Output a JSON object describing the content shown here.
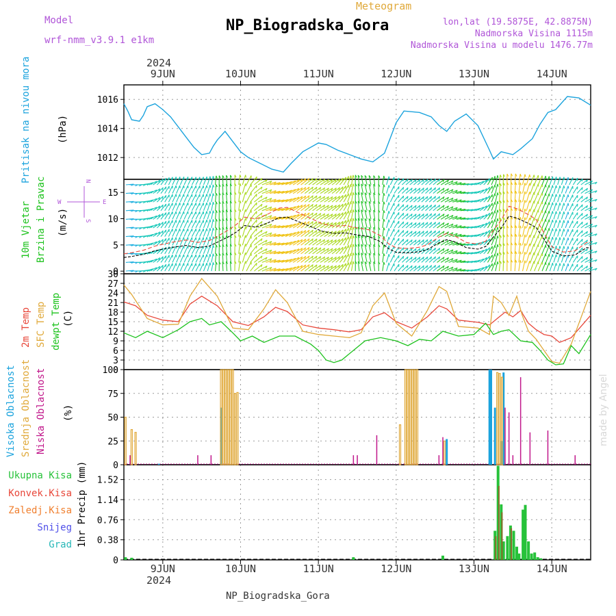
{
  "header": {
    "model_label": "Model",
    "model_name": "wrf-nmm_v3.9.1 e1km",
    "meteogram_label": "Meteogram",
    "station": "NP_Biogradska_Gora",
    "lonlat": "lon,lat (19.5875E, 42.8875N)",
    "elevation": "Nadmorska Visina 1115m",
    "model_elevation": "Nadmorska Visina u modelu 1476.77m",
    "footer": "NP_Biogradska_Gora",
    "watermark": "made by Angel"
  },
  "colors": {
    "pressure": "#1ba3dd",
    "t2m": "#e8473a",
    "tsfc": "#e0a93a",
    "dewpt": "#1cc21c",
    "high_cloud": "#1ba3dd",
    "mid_cloud": "#e0a93a",
    "low_cloud": "#c0168a",
    "total_precip": "#27c23a",
    "conv_precip": "#e8473a",
    "frozen_precip": "#f08030",
    "snow": "#4f4fe8",
    "hail": "#28b8b8",
    "purple": "#b055d8",
    "grid": "#9a9a9a"
  },
  "chart_data": [
    {
      "id": "pressure",
      "type": "line",
      "ylabel": [
        "Pritisak na nivou mora",
        "(hPa)"
      ],
      "yticks": [
        1012,
        1014,
        1016
      ],
      "ylim": [
        1010.5,
        1017
      ],
      "x": [
        8.5,
        8.55,
        8.6,
        8.7,
        8.75,
        8.8,
        8.9,
        9.0,
        9.1,
        9.2,
        9.3,
        9.4,
        9.5,
        9.6,
        9.65,
        9.7,
        9.8,
        9.9,
        10.0,
        10.1,
        10.25,
        10.4,
        10.55,
        10.65,
        10.8,
        11.0,
        11.1,
        11.25,
        11.4,
        11.55,
        11.7,
        11.85,
        12.0,
        12.1,
        12.3,
        12.45,
        12.55,
        12.65,
        12.75,
        12.9,
        13.05,
        13.2,
        13.25,
        13.35,
        13.5,
        13.6,
        13.75,
        13.85,
        13.95,
        14.05,
        14.2,
        14.35,
        14.5
      ],
      "values": [
        1015.7,
        1015.2,
        1014.6,
        1014.5,
        1014.9,
        1015.5,
        1015.7,
        1015.3,
        1014.8,
        1014.1,
        1013.4,
        1012.7,
        1012.2,
        1012.3,
        1012.8,
        1013.2,
        1013.8,
        1013.1,
        1012.4,
        1012.0,
        1011.6,
        1011.2,
        1011.0,
        1011.6,
        1012.4,
        1013.0,
        1012.9,
        1012.5,
        1012.2,
        1011.9,
        1011.7,
        1012.3,
        1014.4,
        1015.2,
        1015.1,
        1014.8,
        1014.2,
        1013.8,
        1014.5,
        1015.0,
        1014.2,
        1012.5,
        1011.9,
        1012.4,
        1012.2,
        1012.6,
        1013.3,
        1014.3,
        1015.1,
        1015.3,
        1016.2,
        1016.1,
        1015.6
      ]
    },
    {
      "id": "wind",
      "type": "line",
      "ylabel": [
        "10m Vjetar",
        "Brzina i Pravac",
        "(m/s)"
      ],
      "compass": [
        "W",
        "E",
        "N",
        "S"
      ],
      "yticks": [
        0,
        5,
        10,
        15
      ],
      "ylim": [
        -0.5,
        17.5
      ],
      "x": [
        8.5,
        8.6,
        8.75,
        8.9,
        9.0,
        9.15,
        9.3,
        9.45,
        9.6,
        9.7,
        9.85,
        9.95,
        10.05,
        10.2,
        10.35,
        10.5,
        10.6,
        10.75,
        10.9,
        11.05,
        11.2,
        11.35,
        11.5,
        11.65,
        11.8,
        11.9,
        12.0,
        12.15,
        12.3,
        12.4,
        12.55,
        12.65,
        12.75,
        12.9,
        13.05,
        13.15,
        13.25,
        13.35,
        13.45,
        13.55,
        13.7,
        13.8,
        13.9,
        14.0,
        14.15,
        14.3,
        14.45,
        14.5
      ],
      "values": [
        2.6,
        2.8,
        3.2,
        3.9,
        4.2,
        4.6,
        4.9,
        4.5,
        4.8,
        5.5,
        6.6,
        7.5,
        8.7,
        8.4,
        9.2,
        10.2,
        10.3,
        9.4,
        8.5,
        7.6,
        7.2,
        7.3,
        6.9,
        6.6,
        5.6,
        4.3,
        3.6,
        3.5,
        3.7,
        4.1,
        5.4,
        6.0,
        5.6,
        4.5,
        4.2,
        4.7,
        6.5,
        8.2,
        10.5,
        10.1,
        9.1,
        8.3,
        6.1,
        3.8,
        2.9,
        3.1,
        4.5,
        4.4
      ],
      "gust_factor": 1.15,
      "arrow_speed_bands": [
        [
          1.5,
          "#2a3be8"
        ],
        [
          3.0,
          "#1fb0e0"
        ],
        [
          5.0,
          "#16c8b8"
        ],
        [
          7.0,
          "#22c228"
        ],
        [
          9.0,
          "#a8d81a"
        ],
        [
          11.0,
          "#f0c418"
        ],
        [
          13.0,
          "#f07c1a"
        ],
        [
          99,
          "#e8283a"
        ]
      ]
    },
    {
      "id": "temperature",
      "type": "line",
      "ylabel": [
        "2m Temp",
        "SFC Temp",
        "dewpt Temp",
        "(C)"
      ],
      "yticks": [
        0,
        3,
        6,
        9,
        12,
        15,
        18,
        21,
        24,
        27,
        30
      ],
      "ylim": [
        0,
        30
      ],
      "series": [
        {
          "name": "2m Temp",
          "x": [
            8.5,
            8.65,
            8.8,
            9.0,
            9.2,
            9.35,
            9.5,
            9.7,
            9.9,
            10.1,
            10.3,
            10.45,
            10.6,
            10.8,
            11.0,
            11.2,
            11.4,
            11.55,
            11.7,
            11.85,
            12.0,
            12.2,
            12.4,
            12.55,
            12.65,
            12.8,
            13.05,
            13.2,
            13.3,
            13.4,
            13.5,
            13.6,
            13.7,
            13.8,
            13.9,
            14.0,
            14.1,
            14.25,
            14.5
          ],
          "values": [
            21.2,
            20.0,
            17.0,
            15.5,
            15.0,
            20.5,
            23.0,
            20.0,
            15.0,
            13.8,
            16.5,
            19.5,
            18.2,
            14.0,
            13.0,
            12.5,
            11.8,
            12.5,
            16.5,
            17.8,
            15.0,
            13.0,
            16.5,
            20.0,
            19.0,
            15.5,
            14.8,
            14.0,
            16.0,
            18.0,
            16.5,
            18.5,
            14.5,
            12.5,
            11.0,
            10.5,
            8.5,
            10.0,
            17.0
          ]
        },
        {
          "name": "SFC Temp",
          "x": [
            8.5,
            8.6,
            8.8,
            9.0,
            9.2,
            9.35,
            9.5,
            9.7,
            9.9,
            10.1,
            10.3,
            10.45,
            10.6,
            10.8,
            11.0,
            11.2,
            11.4,
            11.55,
            11.7,
            11.85,
            12.0,
            12.2,
            12.4,
            12.55,
            12.65,
            12.8,
            13.05,
            13.2,
            13.25,
            13.35,
            13.45,
            13.55,
            13.62,
            13.7,
            13.8,
            13.9,
            14.0,
            14.1,
            14.25,
            14.5
          ],
          "values": [
            26.5,
            23.5,
            16.0,
            14.0,
            14.2,
            23.0,
            28.5,
            23.0,
            13.0,
            12.5,
            19.0,
            25.0,
            21.0,
            12.0,
            11.0,
            10.5,
            10.0,
            11.5,
            20.0,
            24.0,
            14.5,
            10.5,
            18.5,
            26.0,
            24.5,
            13.5,
            13.0,
            11.0,
            23.0,
            21.0,
            17.0,
            23.0,
            17.0,
            12.0,
            9.5,
            6.0,
            2.5,
            2.0,
            8.0,
            24.5
          ]
        },
        {
          "name": "dewpt Temp",
          "x": [
            8.5,
            8.65,
            8.8,
            9.0,
            9.2,
            9.35,
            9.5,
            9.6,
            9.75,
            9.9,
            10.0,
            10.15,
            10.3,
            10.5,
            10.7,
            10.9,
            11.0,
            11.1,
            11.2,
            11.3,
            11.45,
            11.6,
            11.8,
            12.0,
            12.15,
            12.3,
            12.45,
            12.6,
            12.8,
            13.0,
            13.15,
            13.25,
            13.35,
            13.45,
            13.6,
            13.75,
            13.85,
            13.95,
            14.05,
            14.15,
            14.25,
            14.35,
            14.5
          ],
          "values": [
            11.5,
            10.0,
            12.0,
            10.0,
            12.5,
            15.0,
            16.0,
            14.0,
            15.0,
            11.5,
            9.0,
            10.5,
            8.5,
            10.5,
            10.5,
            8.0,
            6.0,
            3.0,
            2.2,
            3.0,
            6.0,
            9.0,
            10.0,
            9.0,
            7.5,
            9.5,
            9.0,
            12.0,
            10.5,
            11.0,
            14.5,
            11.0,
            12.0,
            12.5,
            9.0,
            8.5,
            6.0,
            3.0,
            1.5,
            1.8,
            7.5,
            5.0,
            11.0
          ]
        }
      ]
    },
    {
      "id": "clouds",
      "type": "bar",
      "ylabel": [
        "Visoka Oblacnost",
        "Srednja Oblacnost",
        "Niska Oblacnost",
        "(%)"
      ],
      "yticks": [
        0,
        25,
        50,
        75,
        100
      ],
      "ylim": [
        0,
        100
      ],
      "series": [
        {
          "name": "Visoka Oblacnost",
          "x": [
            8.95,
            9.75,
            12.65,
            13.2,
            13.22,
            13.27,
            13.35,
            13.38
          ],
          "values": [
            1,
            60,
            27,
            100,
            100,
            60,
            25,
            97
          ]
        },
        {
          "name": "Srednja Oblacnost",
          "x": [
            8.52,
            8.6,
            8.65,
            9.75,
            9.78,
            9.81,
            9.84,
            9.87,
            9.9,
            9.93,
            9.96,
            12.05,
            12.12,
            12.15,
            12.18,
            12.21,
            12.24,
            12.27,
            12.62,
            13.3,
            13.33,
            13.36
          ],
          "values": [
            50,
            37,
            34,
            100,
            100,
            100,
            100,
            100,
            100,
            75,
            76,
            42,
            100,
            100,
            100,
            100,
            100,
            100,
            25,
            97,
            96,
            92
          ]
        },
        {
          "name": "Niska Oblacnost",
          "x": [
            8.58,
            9.45,
            9.62,
            11.45,
            11.5,
            11.75,
            12.55,
            12.6,
            13.4,
            13.45,
            13.5,
            13.6,
            13.72,
            13.95,
            14.3
          ],
          "values": [
            10,
            10,
            10,
            10,
            10,
            31,
            10,
            29,
            60,
            55,
            10,
            92,
            34,
            36,
            10
          ]
        }
      ]
    },
    {
      "id": "precip",
      "type": "bar",
      "ylabel": [
        "1hr Precip (mm)"
      ],
      "legend": [
        "Ukupna Kisa",
        "Konvek.Kisa",
        "Zaledj.Kisa",
        "Snijeg",
        "Grad"
      ],
      "yticks": [
        0,
        0.38,
        0.76,
        1.14,
        1.52
      ],
      "ylim": [
        0,
        1.8
      ],
      "series": [
        {
          "name": "Ukupna Kisa",
          "x": [
            8.52,
            8.6,
            11.45,
            12.6,
            13.27,
            13.31,
            13.35,
            13.38,
            13.43,
            13.47,
            13.51,
            13.55,
            13.58,
            13.63,
            13.66,
            13.7,
            13.74,
            13.78,
            13.82,
            13.86
          ],
          "values": [
            0.05,
            0.04,
            0.05,
            0.08,
            0.55,
            1.78,
            1.05,
            0.35,
            0.45,
            0.65,
            0.55,
            0.25,
            0.12,
            0.95,
            1.04,
            0.35,
            0.12,
            0.14,
            0.05,
            0.03
          ]
        },
        {
          "name": "Konvek.Kisa",
          "x": [
            13.28,
            13.32,
            13.36,
            13.48
          ],
          "values": [
            0.45,
            1.4,
            0.9,
            0.6
          ]
        }
      ]
    }
  ],
  "time_axis": {
    "xlim": [
      8.5,
      14.5
    ],
    "ticks": [
      {
        "x": 9,
        "label": "9JUN"
      },
      {
        "x": 10,
        "label": "10JUN"
      },
      {
        "x": 11,
        "label": "11JUN"
      },
      {
        "x": 12,
        "label": "12JUN"
      },
      {
        "x": 13,
        "label": "13JUN"
      },
      {
        "x": 14,
        "label": "14JUN"
      }
    ],
    "year": "2024"
  }
}
